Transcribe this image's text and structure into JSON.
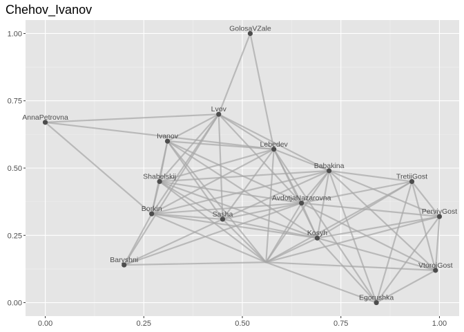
{
  "chart_data": {
    "type": "network",
    "title": "Chehov_Ivanov",
    "xlabel": "",
    "ylabel": "",
    "xlim": [
      -0.05,
      1.05
    ],
    "ylim": [
      -0.05,
      1.05
    ],
    "x_ticks": [
      0.0,
      0.25,
      0.5,
      0.75,
      1.0
    ],
    "x_tick_labels": [
      "0.00",
      "0.25",
      "0.50",
      "0.75",
      "1.00"
    ],
    "y_ticks": [
      0.0,
      0.25,
      0.5,
      0.75,
      1.0
    ],
    "y_tick_labels": [
      "0.00",
      "0.25",
      "0.50",
      "0.75",
      "1.00"
    ],
    "grid": true,
    "colors": {
      "panel": "#e5e5e5",
      "grid_major": "#ffffff",
      "grid_minor": "#f0f0f0",
      "edge": "#a6a6a6",
      "node": "#4d4d4d"
    },
    "nodes": [
      {
        "name": "GolosaVZale",
        "x": 0.52,
        "y": 1.0
      },
      {
        "name": "AnnaPetrovna",
        "x": 0.0,
        "y": 0.67
      },
      {
        "name": "Lvov",
        "x": 0.44,
        "y": 0.7
      },
      {
        "name": "Ivanov",
        "x": 0.31,
        "y": 0.6
      },
      {
        "name": "Lebedev",
        "x": 0.58,
        "y": 0.57
      },
      {
        "name": "Babakina",
        "x": 0.72,
        "y": 0.49
      },
      {
        "name": "Shabelskij",
        "x": 0.29,
        "y": 0.45
      },
      {
        "name": "TretiiGost",
        "x": 0.93,
        "y": 0.45
      },
      {
        "name": "AvdotjaNazarovna",
        "x": 0.65,
        "y": 0.37
      },
      {
        "name": "PerviyGost",
        "x": 1.0,
        "y": 0.32
      },
      {
        "name": "Borkin",
        "x": 0.27,
        "y": 0.33
      },
      {
        "name": "Sasha",
        "x": 0.45,
        "y": 0.31
      },
      {
        "name": "Kosyh",
        "x": 0.69,
        "y": 0.24
      },
      {
        "name": "Baryshni",
        "x": 0.2,
        "y": 0.14
      },
      {
        "name": "VtorojGost",
        "x": 0.99,
        "y": 0.12
      },
      {
        "name": "Egorushka",
        "x": 0.84,
        "y": 0.0
      },
      {
        "name": "",
        "x": 0.56,
        "y": 0.15
      }
    ],
    "edges": [
      [
        1,
        2
      ],
      [
        1,
        4
      ],
      [
        1,
        10
      ],
      [
        0,
        2
      ],
      [
        0,
        4
      ],
      [
        2,
        3
      ],
      [
        2,
        4
      ],
      [
        2,
        5
      ],
      [
        2,
        6
      ],
      [
        2,
        8
      ],
      [
        2,
        10
      ],
      [
        2,
        11
      ],
      [
        2,
        13
      ],
      [
        3,
        4
      ],
      [
        3,
        6
      ],
      [
        3,
        8
      ],
      [
        3,
        10
      ],
      [
        3,
        11
      ],
      [
        3,
        12
      ],
      [
        3,
        16
      ],
      [
        4,
        5
      ],
      [
        4,
        6
      ],
      [
        4,
        8
      ],
      [
        4,
        10
      ],
      [
        4,
        11
      ],
      [
        4,
        12
      ],
      [
        4,
        15
      ],
      [
        4,
        16
      ],
      [
        5,
        6
      ],
      [
        5,
        7
      ],
      [
        5,
        8
      ],
      [
        5,
        9
      ],
      [
        5,
        10
      ],
      [
        5,
        11
      ],
      [
        5,
        12
      ],
      [
        5,
        14
      ],
      [
        5,
        15
      ],
      [
        5,
        16
      ],
      [
        6,
        8
      ],
      [
        6,
        10
      ],
      [
        6,
        11
      ],
      [
        6,
        12
      ],
      [
        6,
        16
      ],
      [
        7,
        8
      ],
      [
        7,
        9
      ],
      [
        7,
        12
      ],
      [
        7,
        14
      ],
      [
        7,
        15
      ],
      [
        7,
        16
      ],
      [
        8,
        9
      ],
      [
        8,
        10
      ],
      [
        8,
        11
      ],
      [
        8,
        12
      ],
      [
        8,
        13
      ],
      [
        8,
        14
      ],
      [
        8,
        16
      ],
      [
        9,
        12
      ],
      [
        9,
        14
      ],
      [
        9,
        15
      ],
      [
        9,
        16
      ],
      [
        10,
        11
      ],
      [
        10,
        12
      ],
      [
        10,
        13
      ],
      [
        10,
        16
      ],
      [
        11,
        12
      ],
      [
        11,
        13
      ],
      [
        11,
        16
      ],
      [
        12,
        14
      ],
      [
        12,
        15
      ],
      [
        12,
        16
      ],
      [
        13,
        16
      ],
      [
        14,
        15
      ],
      [
        14,
        16
      ],
      [
        15,
        16
      ]
    ]
  }
}
